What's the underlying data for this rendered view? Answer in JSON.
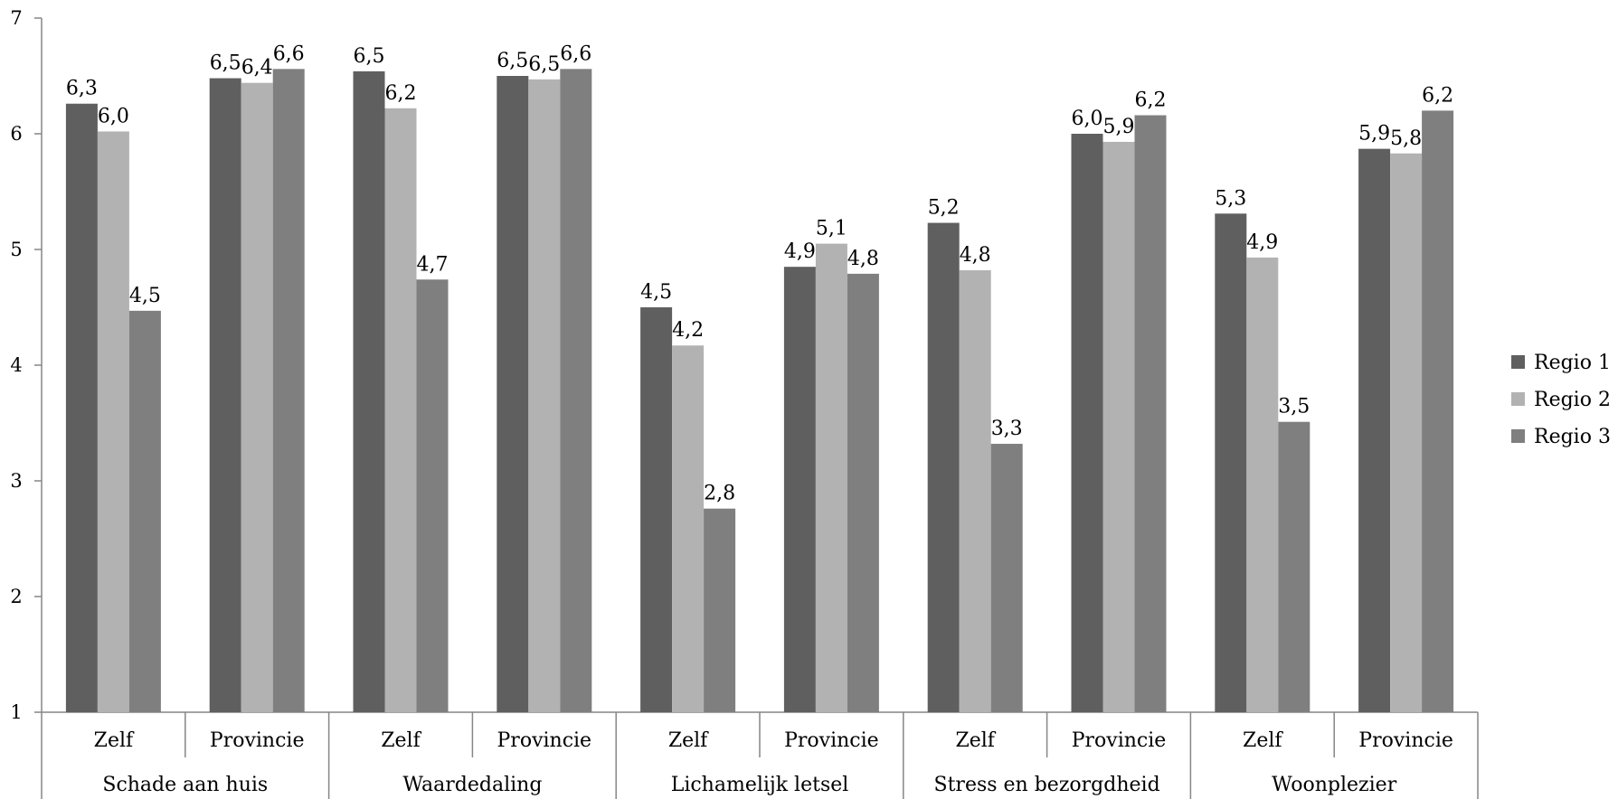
{
  "chart_data": {
    "type": "bar",
    "title": "",
    "xlabel": "",
    "ylabel": "",
    "ylim": [
      1,
      7
    ],
    "yticks": [
      "1",
      "2",
      "3",
      "4",
      "5",
      "6",
      "7"
    ],
    "grid": false,
    "legend_position": "right",
    "groups": [
      "Schade aan huis",
      "Waardedaling",
      "Lichamelijk letsel",
      "Stress en bezorgdheid",
      "Woonplezier"
    ],
    "categories": [
      "Zelf",
      "Provincie",
      "Zelf",
      "Provincie",
      "Zelf",
      "Provincie",
      "Zelf",
      "Provincie",
      "Zelf",
      "Provincie"
    ],
    "series": [
      {
        "name": "Regio 1",
        "color": "#5f5f5f",
        "values": [
          6.26,
          6.48,
          6.54,
          6.5,
          4.5,
          4.85,
          5.23,
          6.0,
          5.31,
          5.87
        ],
        "labels": [
          "6,3",
          "6,5",
          "6,5",
          "6,5",
          "4,5",
          "4,9",
          "5,2",
          "6,0",
          "5,3",
          "5,9"
        ]
      },
      {
        "name": "Regio 2",
        "color": "#b2b2b2",
        "values": [
          6.02,
          6.44,
          6.22,
          6.47,
          4.17,
          5.05,
          4.82,
          5.93,
          4.93,
          5.83
        ],
        "labels": [
          "6,0",
          "6,4",
          "6,2",
          "6,5",
          "4,2",
          "5,1",
          "4,8",
          "5,9",
          "4,9",
          "5,8"
        ]
      },
      {
        "name": "Regio 3",
        "color": "#7f7f7f",
        "values": [
          4.47,
          6.56,
          4.74,
          6.56,
          2.76,
          4.79,
          3.32,
          6.16,
          3.51,
          6.2
        ],
        "labels": [
          "4,5",
          "6,6",
          "4,7",
          "6,6",
          "2,8",
          "4,8",
          "3,3",
          "6,2",
          "3,5",
          "6,2"
        ]
      }
    ]
  }
}
